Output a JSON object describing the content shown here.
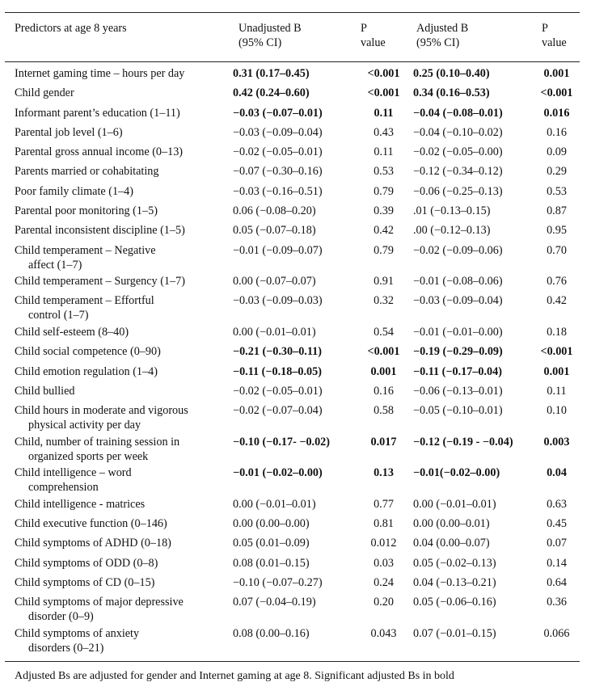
{
  "header": {
    "predictors": "Predictors at age 8 years",
    "unadjusted_line1": "Unadjusted B",
    "unadjusted_line2": "(95% CI)",
    "p1_line1": "P",
    "p1_line2": "value",
    "adjusted_line1": "Adjusted B",
    "adjusted_line2": "(95% CI)",
    "p2_line1": "P",
    "p2_line2": "value"
  },
  "rows": [
    {
      "l1": "Internet gaming time – hours per day",
      "l2": "",
      "u": "0.31 (0.17–0.45)",
      "pu": "<0.001",
      "a": "0.25 (0.10–0.40)",
      "pa": "0.001",
      "bold": true
    },
    {
      "l1": "Child gender",
      "l2": "",
      "u": "0.42 (0.24–0.60)",
      "pu": "<0.001",
      "a": "0.34 (0.16–0.53)",
      "pa": "<0.001",
      "bold": true
    },
    {
      "l1": "Informant parent’s education (1–11)",
      "l2": "",
      "u": "−0.03 (−0.07–0.01)",
      "pu": "0.11",
      "a": "−0.04 (−0.08–0.01)",
      "pa": "0.016",
      "bold": true
    },
    {
      "l1": "Parental job level (1–6)",
      "l2": "",
      "u": "−0.03 (−0.09–0.04)",
      "pu": "0.43",
      "a": "−0.04 (−0.10–0.02)",
      "pa": "0.16",
      "bold": false
    },
    {
      "l1": "Parental gross annual income (0–13)",
      "l2": "",
      "u": "−0.02 (−0.05–0.01)",
      "pu": "0.11",
      "a": "−0.02 (−0.05–0.00)",
      "pa": "0.09",
      "bold": false
    },
    {
      "l1": "Parents married or cohabitating",
      "l2": "",
      "u": "−0.07 (−0.30–0.16)",
      "pu": "0.53",
      "a": "−0.12 (−0.34–0.12)",
      "pa": "0.29",
      "bold": false
    },
    {
      "l1": "Poor family climate (1–4)",
      "l2": "",
      "u": "−0.03 (−0.16–0.51)",
      "pu": "0.79",
      "a": "−0.06 (−0.25–0.13)",
      "pa": "0.53",
      "bold": false
    },
    {
      "l1": "Parental poor monitoring (1–5)",
      "l2": "",
      "u": "0.06 (−0.08–0.20)",
      "pu": "0.39",
      "a": ".01 (−0.13–0.15)",
      "pa": "0.87",
      "bold": false
    },
    {
      "l1": "Parental inconsistent discipline (1–5)",
      "l2": "",
      "u": "0.05 (−0.07–0.18)",
      "pu": "0.42",
      "a": ".00 (−0.12–0.13)",
      "pa": "0.95",
      "bold": false
    },
    {
      "l1": "Child temperament – Negative",
      "l2": "affect (1–7)",
      "u": "−0.01 (−0.09–0.07)",
      "pu": "0.79",
      "a": "−0.02 (−0.09–0.06)",
      "pa": "0.70",
      "bold": false
    },
    {
      "l1": "Child temperament – Surgency (1–7)",
      "l2": "",
      "u": "0.00 (−0.07–0.07)",
      "pu": "0.91",
      "a": "−0.01 (−0.08–0.06)",
      "pa": "0.76",
      "bold": false
    },
    {
      "l1": "Child temperament – Effortful",
      "l2": "control (1–7)",
      "u": "−0.03 (−0.09–0.03)",
      "pu": "0.32",
      "a": "−0.03 (−0.09–0.04)",
      "pa": "0.42",
      "bold": false
    },
    {
      "l1": "Child self-esteem (8–40)",
      "l2": "",
      "u": "0.00 (−0.01–0.01)",
      "pu": "0.54",
      "a": "−0.01 (−0.01–0.00)",
      "pa": "0.18",
      "bold": false
    },
    {
      "l1": "Child social competence (0–90)",
      "l2": "",
      "u": "−0.21 (−0.30–0.11)",
      "pu": "<0.001",
      "a": "−0.19 (−0.29–0.09)",
      "pa": "<0.001",
      "bold": true
    },
    {
      "l1": "Child emotion regulation (1–4)",
      "l2": "",
      "u": "−0.11 (−0.18–0.05)",
      "pu": "0.001",
      "a": "−0.11 (−0.17–0.04)",
      "pa": "0.001",
      "bold": true
    },
    {
      "l1": "Child bullied",
      "l2": "",
      "u": "−0.02 (−0.05–0.01)",
      "pu": "0.16",
      "a": "−0.06 (−0.13–0.01)",
      "pa": "0.11",
      "bold": false
    },
    {
      "l1": "Child hours in moderate and vigorous",
      "l2": "physical activity per day",
      "u": "−0.02 (−0.07–0.04)",
      "pu": "0.58",
      "a": "−0.05 (−0.10–0.01)",
      "pa": "0.10",
      "bold": false
    },
    {
      "l1": "Child, number of training session in",
      "l2": "organized sports per week",
      "u": "−0.10 (−0.17- −0.02)",
      "pu": "0.017",
      "a": "−0.12 (−0.19 - −0.04)",
      "pa": "0.003",
      "bold": true
    },
    {
      "l1": "Child intelligence – word",
      "l2": "comprehension",
      "u": "−0.01 (−0.02–0.00)",
      "pu": "0.13",
      "a": "−0.01(−0.02–0.00)",
      "pa": "0.04",
      "bold": true
    },
    {
      "l1": "Child intelligence - matrices",
      "l2": "",
      "u": "0.00 (−0.01–0.01)",
      "pu": "0.77",
      "a": "0.00 (−0.01–0.01)",
      "pa": "0.63",
      "bold": false
    },
    {
      "l1": "Child executive function (0–146)",
      "l2": "",
      "u": "0.00 (0.00–0.00)",
      "pu": "0.81",
      "a": "0.00 (0.00–0.01)",
      "pa": "0.45",
      "bold": false
    },
    {
      "l1": "Child symptoms of ADHD (0–18)",
      "l2": "",
      "u": "0.05 (0.01–0.09)",
      "pu": "0.012",
      "a": "0.04 (0.00–0.07)",
      "pa": "0.07",
      "bold": false
    },
    {
      "l1": "Child symptoms of ODD (0–8)",
      "l2": "",
      "u": "0.08 (0.01–0.15)",
      "pu": "0.03",
      "a": "0.05 (−0.02–0.13)",
      "pa": "0.14",
      "bold": false
    },
    {
      "l1": "Child symptoms of CD (0–15)",
      "l2": "",
      "u": "−0.10 (−0.07–0.27)",
      "pu": "0.24",
      "a": "0.04 (−0.13–0.21)",
      "pa": "0.64",
      "bold": false
    },
    {
      "l1": "Child symptoms of major depressive",
      "l2": "disorder (0–9)",
      "u": "0.07 (−0.04–0.19)",
      "pu": "0.20",
      "a": "0.05 (−0.06–0.16)",
      "pa": "0.36",
      "bold": false
    },
    {
      "l1": "Child symptoms of anxiety",
      "l2": "disorders (0–21)",
      "u": "0.08 (0.00–0.16)",
      "pu": "0.043",
      "a": "0.07 (−0.01–0.15)",
      "pa": "0.066",
      "bold": false
    }
  ],
  "footnote": "Adjusted Bs are adjusted for gender and Internet gaming at age 8. Significant adjusted Bs in bold"
}
